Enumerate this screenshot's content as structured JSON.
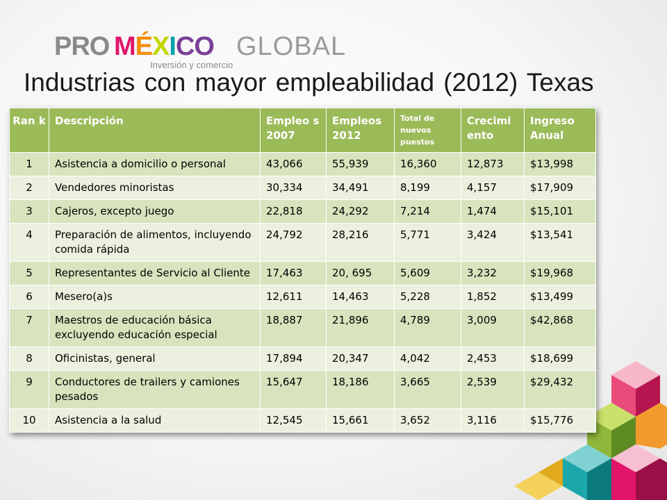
{
  "logo": {
    "pro": "PRO",
    "mexico": [
      "M",
      "É",
      "X",
      "I",
      "CO"
    ],
    "global": "GLOBAL",
    "tagline": "Inversión y comercio"
  },
  "title": "Industrias con mayor empleabilidad (2012) Texas",
  "colors": {
    "header_bg": "#9bbb59",
    "row_dark": "#d7e4bd",
    "row_light": "#ebf1de"
  },
  "table": {
    "headers": {
      "rank": "Ran k",
      "description": "Descripción",
      "emp2007": "Empleo s 2007",
      "emp2012": "Empleos 2012",
      "new_jobs": "Total de nuevos puestos",
      "growth": "Crecimi ento",
      "income": "Ingreso Anual"
    },
    "rows": [
      {
        "rank": "1",
        "description": "Asistencia a domicilio o personal",
        "emp2007": "43,066",
        "emp2012": "55,939",
        "new_jobs": "16,360",
        "growth": "12,873",
        "income": "$13,998"
      },
      {
        "rank": "2",
        "description": "Vendedores minoristas",
        "emp2007": "30,334",
        "emp2012": "34,491",
        "new_jobs": "8,199",
        "growth": "4,157",
        "income": "$17,909"
      },
      {
        "rank": "3",
        "description": "Cajeros, excepto juego",
        "emp2007": "22,818",
        "emp2012": "24,292",
        "new_jobs": "7,214",
        "growth": "1,474",
        "income": "$15,101"
      },
      {
        "rank": "4",
        "description": "Preparación de alimentos, incluyendo comida rápida",
        "emp2007": "24,792",
        "emp2012": "28,216",
        "new_jobs": "5,771",
        "growth": "3,424",
        "income": "$13,541"
      },
      {
        "rank": "5",
        "description": "Representantes de Servicio al Cliente",
        "emp2007": "17,463",
        "emp2012": "20, 695",
        "new_jobs": "5,609",
        "growth": "3,232",
        "income": "$19,968"
      },
      {
        "rank": "6",
        "description": "Mesero(a)s",
        "emp2007": "12,611",
        "emp2012": "14,463",
        "new_jobs": "5,228",
        "growth": "1,852",
        "income": "$13,499"
      },
      {
        "rank": "7",
        "description": "Maestros de educación básica excluyendo educación especial",
        "emp2007": "18,887",
        "emp2012": "21,896",
        "new_jobs": "4,789",
        "growth": "3,009",
        "income": "$42,868"
      },
      {
        "rank": "8",
        "description": "Oficinistas, general",
        "emp2007": "17,894",
        "emp2012": "20,347",
        "new_jobs": "4,042",
        "growth": "2,453",
        "income": "$18,699"
      },
      {
        "rank": "9",
        "description": "Conductores de trailers y camiones pesados",
        "emp2007": "15,647",
        "emp2012": "18,186",
        "new_jobs": "3,665",
        "growth": "2,539",
        "income": "$29,432"
      },
      {
        "rank": "10",
        "description": "Asistencia a la salud",
        "emp2007": "12,545",
        "emp2012": "15,661",
        "new_jobs": "3,652",
        "growth": "3,116",
        "income": "$15,776"
      }
    ]
  }
}
